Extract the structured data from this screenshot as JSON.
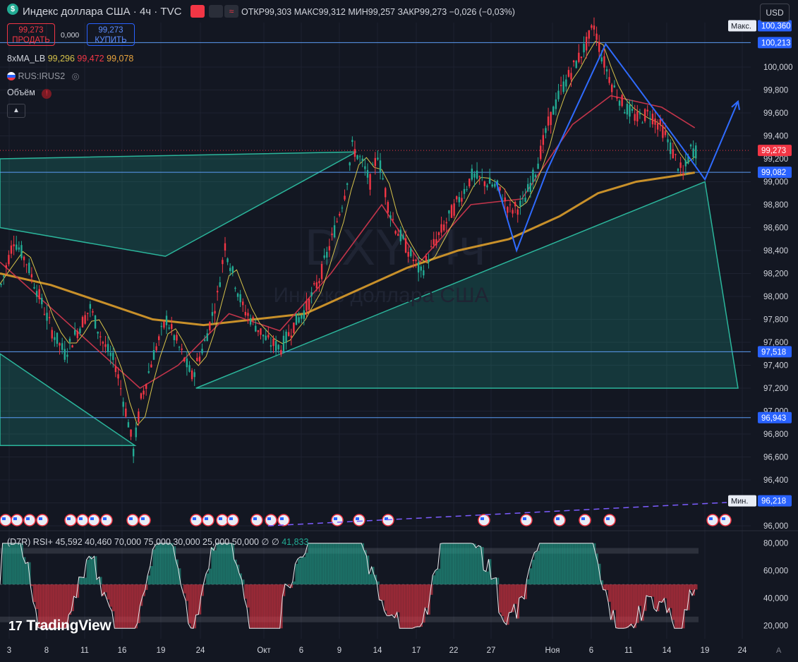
{
  "header": {
    "symbol_badge": "$",
    "title": "Индекс доллара США · 4ч · TVC",
    "open_label": "ОТКР",
    "open": "99,303",
    "high_label": "МАКС",
    "high": "99,312",
    "low_label": "МИН",
    "low": "99,257",
    "close_label": "ЗАКР",
    "close": "99,273",
    "change": "−0,026 (−0,03%)",
    "currency": "USD"
  },
  "trade": {
    "sell_price": "99,273",
    "sell_label": "ПРОДАТЬ",
    "spread": "0,000",
    "buy_price": "99,273",
    "buy_label": "КУПИТЬ"
  },
  "indicators": {
    "ma_name": "8xMA_LB",
    "ma_v1": "99,296",
    "ma_v2": "99,472",
    "ma_v3": "99,078",
    "rus": "RUS:IRUS2",
    "volume": "Объём",
    "collapse_icon": "chevron-up-icon"
  },
  "watermark": {
    "symbol": "DXY, 4ч",
    "name": "Индекс доллара США"
  },
  "rsi": {
    "name": "(D7R) RSI+",
    "values": [
      "45,592",
      "40,460",
      "70,000",
      "75,000",
      "30,000",
      "25,000",
      "50,000",
      "∅",
      "∅"
    ],
    "last": "41,833"
  },
  "brand": "TradingView",
  "colors": {
    "bg": "#131722",
    "up": "#22ab94",
    "down": "#f23645",
    "blue": "#2962ff",
    "ma_gold": "#c8902a",
    "ma_red": "#c2344a",
    "ma_yellow": "#d6c24a",
    "hline": "#5b9cf5",
    "triangle": "#1f7f6f"
  },
  "chart_data": {
    "type": "candlestick",
    "title": "Индекс доллара США · 4ч · TVC",
    "price_axis": {
      "ticks": [
        "100,000",
        "99,800",
        "99,600",
        "99,400",
        "99,200",
        "99,000",
        "98,800",
        "98,600",
        "98,400",
        "98,200",
        "98,000",
        "97,800",
        "97,600",
        "97,400",
        "97,200",
        "97,000",
        "96,800",
        "96,600",
        "96,400",
        "96,200",
        "96,000"
      ],
      "tick_values": [
        100.0,
        99.8,
        99.6,
        99.4,
        99.2,
        99.0,
        98.8,
        98.6,
        98.4,
        98.2,
        98.0,
        97.8,
        97.6,
        97.4,
        97.2,
        97.0,
        96.8,
        96.6,
        96.4,
        96.2,
        96.0
      ],
      "ylim": [
        95.98,
        100.5
      ]
    },
    "price_labels": [
      {
        "label": "Макс.",
        "value": "100,360",
        "num": 100.36
      },
      {
        "label": "",
        "value": "100,213",
        "num": 100.213
      },
      {
        "label": "",
        "value": "99,273",
        "num": 99.273
      },
      {
        "label": "",
        "value": "99,082",
        "num": 99.082
      },
      {
        "label": "",
        "value": "97,518",
        "num": 97.518
      },
      {
        "label": "",
        "value": "96,943",
        "num": 96.943
      },
      {
        "label": "Мин.",
        "value": "96,218",
        "num": 96.218
      }
    ],
    "time_axis": [
      "3",
      "8",
      "11",
      "16",
      "19",
      "24",
      "Окт",
      "6",
      "9",
      "14",
      "17",
      "22",
      "27",
      "Ноя",
      "6",
      "11",
      "14",
      "19",
      "24"
    ],
    "price_path": [
      [
        0,
        98.1
      ],
      [
        5,
        98.5
      ],
      [
        10,
        98.3
      ],
      [
        15,
        98.0
      ],
      [
        20,
        97.7
      ],
      [
        25,
        97.5
      ],
      [
        30,
        97.7
      ],
      [
        35,
        97.9
      ],
      [
        40,
        97.6
      ],
      [
        45,
        97.4
      ],
      [
        50,
        96.9
      ],
      [
        52,
        96.65
      ],
      [
        55,
        97.1
      ],
      [
        60,
        97.5
      ],
      [
        65,
        97.8
      ],
      [
        70,
        97.55
      ],
      [
        75,
        97.3
      ],
      [
        80,
        97.6
      ],
      [
        85,
        98.0
      ],
      [
        88,
        98.45
      ],
      [
        91,
        98.2
      ],
      [
        95,
        97.9
      ],
      [
        100,
        97.75
      ],
      [
        105,
        97.6
      ],
      [
        110,
        97.55
      ],
      [
        115,
        97.75
      ],
      [
        120,
        97.9
      ],
      [
        125,
        98.15
      ],
      [
        130,
        98.5
      ],
      [
        135,
        98.9
      ],
      [
        138,
        99.3
      ],
      [
        141,
        99.2
      ],
      [
        145,
        99.0
      ],
      [
        148,
        99.25
      ],
      [
        152,
        98.8
      ],
      [
        155,
        98.6
      ],
      [
        160,
        98.4
      ],
      [
        165,
        98.2
      ],
      [
        170,
        98.45
      ],
      [
        175,
        98.65
      ],
      [
        180,
        98.85
      ],
      [
        185,
        99.05
      ],
      [
        190,
        99.0
      ],
      [
        195,
        98.95
      ],
      [
        200,
        98.75
      ],
      [
        205,
        98.8
      ],
      [
        210,
        99.1
      ],
      [
        215,
        99.5
      ],
      [
        220,
        99.8
      ],
      [
        225,
        100.0
      ],
      [
        230,
        100.2
      ],
      [
        233,
        100.36
      ],
      [
        236,
        100.1
      ],
      [
        240,
        99.85
      ],
      [
        245,
        99.65
      ],
      [
        250,
        99.55
      ],
      [
        255,
        99.6
      ],
      [
        260,
        99.45
      ],
      [
        265,
        99.2
      ],
      [
        268,
        99.05
      ],
      [
        271,
        99.28
      ],
      [
        273,
        99.27
      ]
    ],
    "ma_slow": [
      [
        0,
        98.2
      ],
      [
        20,
        98.1
      ],
      [
        40,
        97.95
      ],
      [
        60,
        97.8
      ],
      [
        80,
        97.75
      ],
      [
        100,
        97.8
      ],
      [
        120,
        97.85
      ],
      [
        140,
        98.05
      ],
      [
        160,
        98.25
      ],
      [
        180,
        98.4
      ],
      [
        200,
        98.5
      ],
      [
        220,
        98.7
      ],
      [
        235,
        98.9
      ],
      [
        250,
        99.0
      ],
      [
        265,
        99.05
      ],
      [
        273,
        99.08
      ]
    ],
    "ma_mid": [
      [
        0,
        98.3
      ],
      [
        20,
        97.9
      ],
      [
        40,
        97.5
      ],
      [
        55,
        97.2
      ],
      [
        70,
        97.4
      ],
      [
        90,
        97.85
      ],
      [
        110,
        97.7
      ],
      [
        130,
        98.2
      ],
      [
        150,
        98.8
      ],
      [
        165,
        98.3
      ],
      [
        185,
        98.8
      ],
      [
        205,
        98.85
      ],
      [
        225,
        99.5
      ],
      [
        240,
        99.75
      ],
      [
        260,
        99.65
      ],
      [
        273,
        99.47
      ]
    ],
    "triangles": [
      {
        "name": "left-flag",
        "points": [
          [
            0,
            99.2
          ],
          [
            140,
            99.26
          ],
          [
            65,
            98.35
          ],
          [
            0,
            98.6
          ]
        ]
      },
      {
        "name": "left-low",
        "points": [
          [
            0,
            97.5
          ],
          [
            53,
            96.7
          ],
          [
            0,
            96.7
          ]
        ]
      },
      {
        "name": "main",
        "points": [
          [
            77,
            97.2
          ],
          [
            277,
            99.0
          ],
          [
            290,
            97.2
          ]
        ]
      }
    ],
    "zigzag": [
      [
        195,
        99.0
      ],
      [
        203,
        98.4
      ],
      [
        215,
        99.1
      ],
      [
        238,
        100.2
      ],
      [
        248,
        99.9
      ],
      [
        268,
        99.3
      ],
      [
        277,
        99.02
      ],
      [
        290,
        99.7
      ]
    ],
    "rsi_axis": {
      "ticks": [
        "80,000",
        "60,000",
        "40,000",
        "20,000"
      ],
      "tick_values": [
        80,
        60,
        40,
        20
      ],
      "ylim": [
        12,
        85
      ]
    },
    "rsi_levels": {
      "upper": 75,
      "lower": 25,
      "mid": 50
    }
  }
}
